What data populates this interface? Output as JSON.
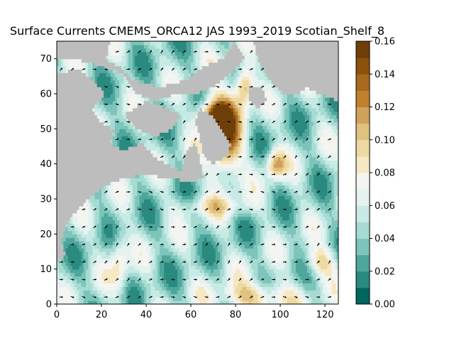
{
  "chart_data": {
    "type": "heatmap",
    "title": "Surface Currents CMEMS_ORCA12 JAS 1993_2019 Scotian_Shelf_8",
    "xlabel": "",
    "ylabel": "",
    "xlim": [
      0,
      126
    ],
    "ylim": [
      0,
      75
    ],
    "x_ticks": [
      0,
      20,
      40,
      60,
      80,
      100,
      120
    ],
    "y_ticks": [
      0,
      10,
      20,
      30,
      40,
      50,
      60,
      70
    ],
    "land_color": "#bdbdbd",
    "colorbar": {
      "colormap": "BrBG_r",
      "vmin": 0.0,
      "vmax": 0.16,
      "levels": 16,
      "ticks": [
        0.0,
        0.02,
        0.04,
        0.06,
        0.08,
        0.1,
        0.12,
        0.14,
        0.16
      ],
      "tick_labels": [
        "0.00",
        "0.02",
        "0.04",
        "0.06",
        "0.08",
        "0.10",
        "0.12",
        "0.14",
        "0.16"
      ],
      "colors": [
        "#01665e",
        "#2a8a80",
        "#4ea69c",
        "#7dc5bb",
        "#a6dbd3",
        "#c7eae5",
        "#e4f2f0",
        "#f4f4f0",
        "#f6e8c3",
        "#eed9a2",
        "#dfc27d",
        "#cfa15a",
        "#bf812d",
        "#a86a1f",
        "#8c510a",
        "#6e3f08"
      ]
    },
    "quiver": {
      "spacing": 5,
      "color": "#000000"
    }
  }
}
